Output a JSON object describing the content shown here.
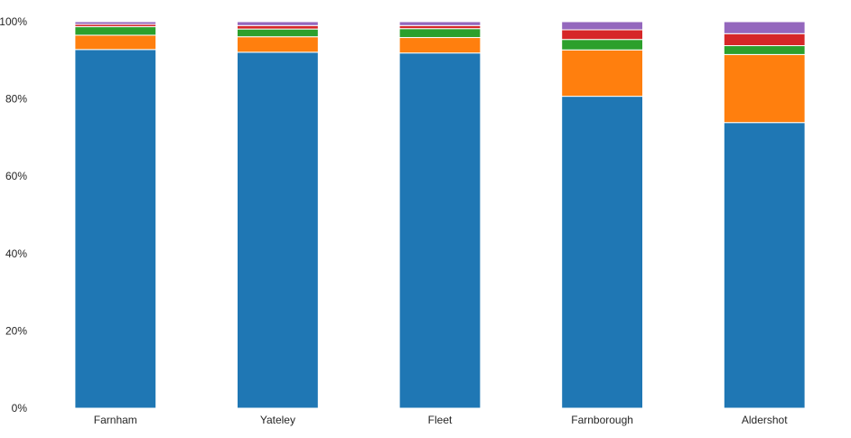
{
  "chart_data": {
    "type": "bar",
    "stacked": true,
    "percent_axis": true,
    "title": "",
    "xlabel": "",
    "ylabel": "",
    "ylim": [
      0,
      100
    ],
    "y_ticks": [
      0,
      20,
      40,
      60,
      80,
      100
    ],
    "y_tick_labels": [
      "0%",
      "20%",
      "40%",
      "60%",
      "80%",
      "100%"
    ],
    "grid": false,
    "legend": "none",
    "categories": [
      "Farnham",
      "Yateley",
      "Fleet",
      "Farnborough",
      "Aldershot"
    ],
    "series": [
      {
        "color": "#1f77b4",
        "values": [
          92.8,
          92.1,
          91.9,
          80.7,
          73.9
        ]
      },
      {
        "color": "#ff7f0e",
        "values": [
          3.7,
          4.0,
          4.0,
          12.0,
          17.6
        ]
      },
      {
        "color": "#2ca02c",
        "values": [
          2.2,
          2.0,
          2.3,
          2.7,
          2.3
        ]
      },
      {
        "color": "#d62728",
        "values": [
          0.6,
          0.9,
          0.8,
          2.5,
          3.1
        ]
      },
      {
        "color": "#9467bd",
        "values": [
          0.7,
          1.0,
          1.0,
          2.1,
          3.1
        ]
      }
    ]
  }
}
